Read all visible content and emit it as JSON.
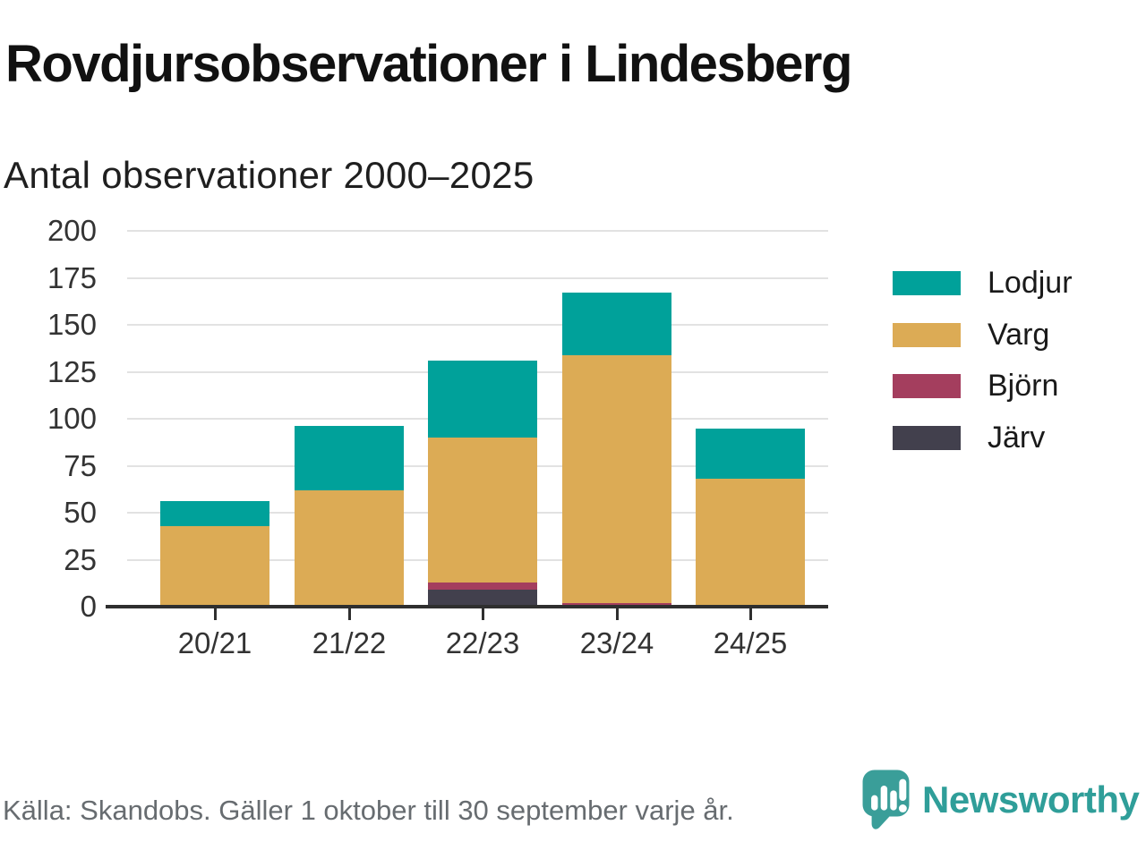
{
  "header": {
    "title": "Rovdjursobservationer i Lindesberg",
    "subtitle": "Antal observationer 2000–2025"
  },
  "chart_data": {
    "type": "bar",
    "stacked": true,
    "title": "Rovdjursobservationer i Lindesberg",
    "subtitle": "Antal observationer 2000–2025",
    "xlabel": "",
    "ylabel": "",
    "ylim": [
      0,
      200
    ],
    "yticks": [
      0,
      25,
      50,
      75,
      100,
      125,
      150,
      175,
      200
    ],
    "grid": true,
    "legend_position": "right",
    "categories": [
      "20/21",
      "21/22",
      "22/23",
      "23/24",
      "24/25"
    ],
    "series": [
      {
        "name": "Järv",
        "color": "#42404d",
        "values": [
          0,
          0,
          9,
          0,
          0
        ]
      },
      {
        "name": "Björn",
        "color": "#a43e5e",
        "values": [
          1,
          0,
          4,
          2,
          0
        ]
      },
      {
        "name": "Varg",
        "color": "#dcab55",
        "values": [
          42,
          62,
          77,
          132,
          68
        ]
      },
      {
        "name": "Lodjur",
        "color": "#00a19a",
        "values": [
          13,
          34,
          41,
          33,
          27
        ]
      }
    ],
    "totals": [
      56,
      96,
      131,
      167,
      95
    ]
  },
  "legend": {
    "items": [
      {
        "label": "Lodjur",
        "color": "#00a19a"
      },
      {
        "label": "Varg",
        "color": "#dcab55"
      },
      {
        "label": "Björn",
        "color": "#a43e5e"
      },
      {
        "label": "Järv",
        "color": "#42404d"
      }
    ]
  },
  "footer": {
    "source": "Källa: Skandobs. Gäller 1 oktober till 30 september varje år.",
    "brand": "Newsworthy"
  },
  "colors": {
    "grid": "#e2e2e2",
    "axis": "#2f2f2f",
    "tick_label": "#333333",
    "title": "#111111",
    "footer_text": "#676c70",
    "brand_icon": "#3a9e99",
    "brand_wordmark": "#2f9e99"
  }
}
